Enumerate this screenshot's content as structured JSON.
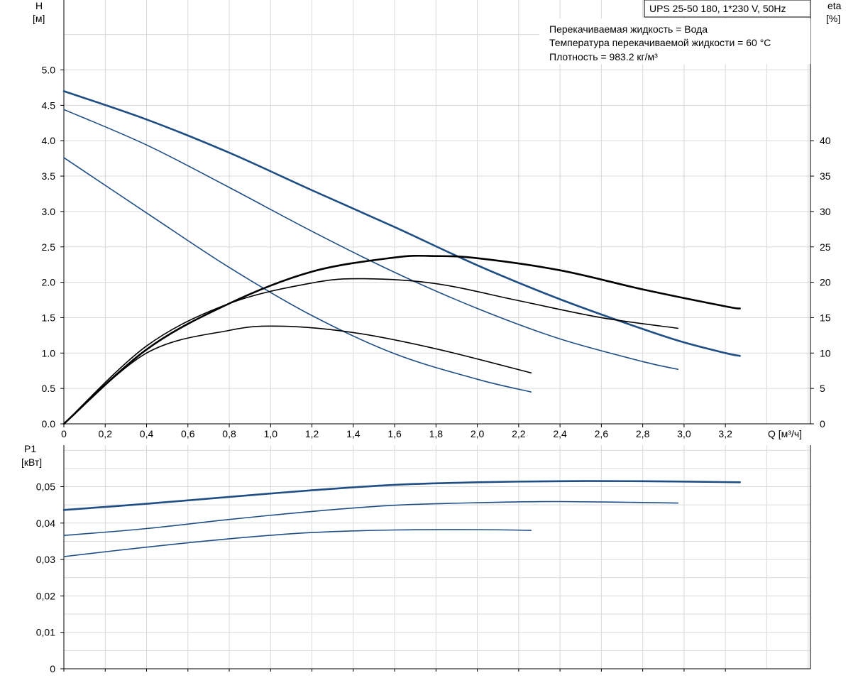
{
  "header": {
    "model": "UPS 25-50 180, 1*230 V, 50Hz",
    "liquid": "Перекачиваемая жидкость = Вода",
    "temperature": "Температура перекачиваемой жидкости = 60 °C",
    "density": "Плотность = 983.2 кг/м³"
  },
  "colors": {
    "blue": "#1f4e85",
    "black": "#000000",
    "grid": "#d9d9d9"
  },
  "chart_data": [
    {
      "type": "line",
      "id": "head_efficiency",
      "xlabel": "Q [м³/ч]",
      "ylabel_left": "H",
      "ylabel_left_unit": "[м]",
      "ylabel_right": "eta",
      "ylabel_right_unit": "[%]",
      "xlim": [
        0,
        3.6
      ],
      "ylim_left": [
        0,
        6.0
      ],
      "ylim_right": [
        0,
        60
      ],
      "x_ticks": [
        "0",
        "0,2",
        "0,4",
        "0,6",
        "0,8",
        "1,0",
        "1,2",
        "1,4",
        "1,6",
        "1,8",
        "2,0",
        "2,2",
        "2,4",
        "2,6",
        "2,8",
        "3,0",
        "3,2"
      ],
      "x_tick_values": [
        0,
        0.2,
        0.4,
        0.6,
        0.8,
        1.0,
        1.2,
        1.4,
        1.6,
        1.8,
        2.0,
        2.2,
        2.4,
        2.6,
        2.8,
        3.0,
        3.2
      ],
      "y_left_ticks": [
        "0.0",
        "0.5",
        "1.0",
        "1.5",
        "2.0",
        "2.5",
        "3.0",
        "3.5",
        "4.0",
        "4.5",
        "5.0"
      ],
      "y_left_tick_values": [
        0,
        0.5,
        1.0,
        1.5,
        2.0,
        2.5,
        3.0,
        3.5,
        4.0,
        4.5,
        5.0
      ],
      "y_right_ticks": [
        "0",
        "5",
        "10",
        "15",
        "20",
        "25",
        "30",
        "35",
        "40"
      ],
      "y_right_tick_values": [
        0,
        5,
        10,
        15,
        20,
        25,
        30,
        35,
        40
      ],
      "grid": true,
      "series": [
        {
          "kind": "head",
          "axis": "left",
          "width": 2.6,
          "color": "#1f4e85",
          "x": [
            0,
            0.4,
            0.8,
            1.2,
            1.6,
            2.0,
            2.4,
            2.8,
            3.0,
            3.2,
            3.27
          ],
          "y": [
            4.7,
            4.3,
            3.83,
            3.3,
            2.78,
            2.24,
            1.76,
            1.34,
            1.15,
            1.0,
            0.96
          ]
        },
        {
          "kind": "head",
          "axis": "left",
          "width": 1.6,
          "color": "#1f4e85",
          "x": [
            0,
            0.4,
            0.8,
            1.2,
            1.6,
            2.0,
            2.4,
            2.8,
            2.97
          ],
          "y": [
            4.44,
            3.94,
            3.34,
            2.72,
            2.14,
            1.63,
            1.2,
            0.88,
            0.77
          ]
        },
        {
          "kind": "head",
          "axis": "left",
          "width": 1.6,
          "color": "#1f4e85",
          "x": [
            0,
            0.4,
            0.8,
            1.2,
            1.6,
            2.0,
            2.26
          ],
          "y": [
            3.76,
            2.98,
            2.21,
            1.53,
            0.99,
            0.63,
            0.45
          ]
        },
        {
          "kind": "eta",
          "axis": "right",
          "width": 2.6,
          "color": "#000000",
          "x": [
            0,
            0.4,
            0.8,
            1.2,
            1.6,
            1.8,
            2.0,
            2.4,
            2.8,
            3.2,
            3.27
          ],
          "y": [
            0,
            10.5,
            17.0,
            21.5,
            23.5,
            23.7,
            23.4,
            21.7,
            19.0,
            16.6,
            16.3
          ]
        },
        {
          "kind": "eta",
          "axis": "right",
          "width": 1.6,
          "color": "#000000",
          "x": [
            0,
            0.4,
            0.8,
            1.2,
            1.45,
            1.8,
            2.2,
            2.6,
            2.97
          ],
          "y": [
            0,
            11.0,
            17.0,
            19.9,
            20.5,
            19.8,
            17.4,
            15.0,
            13.5
          ]
        },
        {
          "kind": "eta",
          "axis": "right",
          "width": 1.6,
          "color": "#000000",
          "x": [
            0,
            0.4,
            0.8,
            1.05,
            1.4,
            1.8,
            2.26
          ],
          "y": [
            0,
            10.0,
            13.2,
            13.8,
            12.9,
            10.6,
            7.2
          ]
        }
      ]
    },
    {
      "type": "line",
      "id": "power",
      "ylabel": "P1",
      "ylabel_unit": "[кВт]",
      "xlim": [
        0,
        3.6
      ],
      "ylim": [
        0,
        0.06
      ],
      "y_ticks": [
        "0",
        "0,01",
        "0,02",
        "0,03",
        "0,04",
        "0,05"
      ],
      "y_tick_values": [
        0,
        0.01,
        0.02,
        0.03,
        0.04,
        0.05
      ],
      "grid": true,
      "series": [
        {
          "width": 2.6,
          "color": "#1f4e85",
          "x": [
            0,
            0.4,
            0.8,
            1.2,
            1.6,
            2.0,
            2.4,
            2.8,
            3.27
          ],
          "y": [
            0.0436,
            0.0453,
            0.0472,
            0.049,
            0.0505,
            0.0512,
            0.0515,
            0.0515,
            0.0512
          ]
        },
        {
          "width": 1.6,
          "color": "#1f4e85",
          "x": [
            0,
            0.4,
            0.8,
            1.2,
            1.6,
            2.0,
            2.4,
            2.97
          ],
          "y": [
            0.0366,
            0.0385,
            0.041,
            0.0432,
            0.0449,
            0.0456,
            0.0459,
            0.0455
          ]
        },
        {
          "width": 1.6,
          "color": "#1f4e85",
          "x": [
            0,
            0.4,
            0.8,
            1.2,
            1.6,
            2.0,
            2.26
          ],
          "y": [
            0.0308,
            0.0334,
            0.0357,
            0.0374,
            0.0381,
            0.0382,
            0.038
          ]
        }
      ]
    }
  ]
}
